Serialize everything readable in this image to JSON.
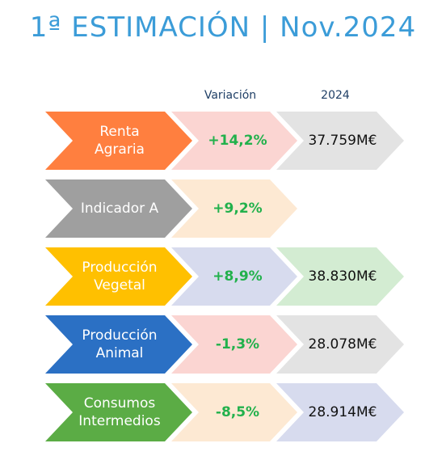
{
  "title": "1ª ESTIMACIÓN  |  Nov.2024",
  "headers": {
    "variation": "Variación",
    "year": "2024"
  },
  "colors": {
    "positive": "#22b14c",
    "negative": "#22b14c"
  },
  "rows": [
    {
      "label_lines": [
        "Renta",
        "Agraria"
      ],
      "color": "#ff7f3f",
      "variation": "+14,2%",
      "var_bg": "#fbd5d2",
      "value": "37.759M€",
      "val_bg": "#e3e3e3"
    },
    {
      "label_lines": [
        "Indicador A"
      ],
      "color": "#9f9f9f",
      "variation": "+9,2%",
      "var_bg": "#fde9d3",
      "value": "",
      "val_bg": ""
    },
    {
      "label_lines": [
        "Producción",
        "Vegetal"
      ],
      "color": "#ffc000",
      "variation": "+8,9%",
      "var_bg": "#d7dbee",
      "value": "38.830M€",
      "val_bg": "#d3ecd2"
    },
    {
      "label_lines": [
        "Producción",
        "Animal"
      ],
      "color": "#2b70c4",
      "variation": "-1,3%",
      "var_bg": "#fbd5d2",
      "value": "28.078M€",
      "val_bg": "#e3e3e3"
    },
    {
      "label_lines": [
        "Consumos",
        "Intermedios"
      ],
      "color": "#5bac45",
      "variation": "-8,5%",
      "var_bg": "#fde9d3",
      "value": "28.914M€",
      "val_bg": "#d7dbee"
    }
  ]
}
